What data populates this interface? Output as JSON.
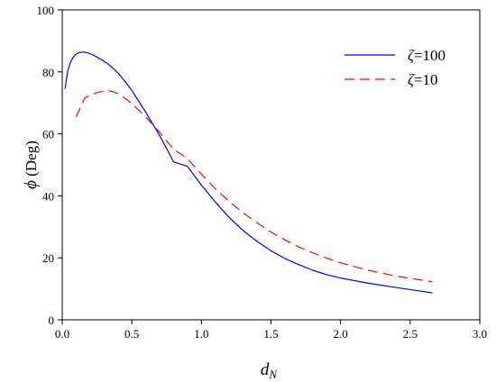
{
  "chart_data": {
    "type": "line",
    "xlabel_main": "d",
    "xlabel_sub": "N",
    "ylabel_symbol": "ϕ",
    "ylabel_unit": " (Deg)",
    "xlim": [
      0,
      3.0
    ],
    "ylim": [
      0,
      100
    ],
    "xticks": [
      "0.0",
      "0.5",
      "1.0",
      "1.5",
      "2.0",
      "2.5",
      "3.0"
    ],
    "yticks": [
      "0",
      "20",
      "40",
      "60",
      "80",
      "100"
    ],
    "grid": false,
    "legend_position": "top-right",
    "series": [
      {
        "name": "ζ=100",
        "legend_symbol": "ζ",
        "legend_value": "=100",
        "color": "#0000ff",
        "dash": "solid",
        "x": [
          0.02,
          0.04,
          0.06,
          0.08,
          0.1,
          0.12,
          0.15,
          0.18,
          0.22,
          0.26,
          0.3,
          0.35,
          0.4,
          0.45,
          0.5,
          0.6,
          0.7,
          0.8,
          0.9,
          1.0,
          1.1,
          1.2,
          1.3,
          1.4,
          1.5,
          1.6,
          1.7,
          1.8,
          1.9,
          2.0,
          2.2,
          2.4,
          2.6,
          2.66
        ],
        "y": [
          74.5,
          80.5,
          83.2,
          84.8,
          85.7,
          86.2,
          86.4,
          86.2,
          85.5,
          84.5,
          83.5,
          81.8,
          79.7,
          77.0,
          74.0,
          67.0,
          59.5,
          51.0,
          49.5,
          43.5,
          38.0,
          33.0,
          28.8,
          25.3,
          22.3,
          19.8,
          17.8,
          16.0,
          14.6,
          13.5,
          11.8,
          10.4,
          9.1,
          8.7
        ]
      },
      {
        "name": "ζ=10",
        "legend_symbol": "ζ",
        "legend_value": "=10",
        "color": "#ff0000",
        "dash": "dashed",
        "x": [
          0.1,
          0.13,
          0.16,
          0.2,
          0.25,
          0.3,
          0.35,
          0.4,
          0.45,
          0.5,
          0.6,
          0.7,
          0.8,
          0.9,
          1.0,
          1.1,
          1.2,
          1.3,
          1.4,
          1.5,
          1.6,
          1.7,
          1.8,
          1.9,
          2.0,
          2.2,
          2.4,
          2.6,
          2.66
        ],
        "y": [
          65.5,
          68.5,
          71.5,
          72.5,
          73.3,
          73.8,
          73.8,
          73.0,
          71.5,
          69.8,
          65.5,
          60.5,
          55.0,
          52.0,
          47.0,
          42.3,
          38.2,
          34.5,
          31.3,
          28.3,
          25.8,
          23.5,
          21.6,
          19.9,
          18.4,
          16.0,
          14.1,
          12.7,
          12.3
        ]
      }
    ]
  }
}
